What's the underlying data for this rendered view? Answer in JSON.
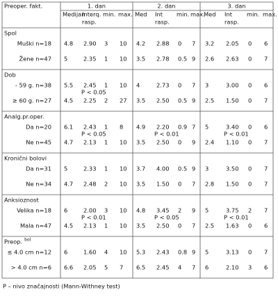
{
  "table": {
    "header": [
      "Preoper. fakt.",
      "1. dan",
      "2. dan",
      "3. dan"
    ],
    "subheader": [
      [
        [
          "Medijan"
        ],
        [
          "Interq.",
          "rasp."
        ],
        [
          "min."
        ],
        [
          "max."
        ]
      ],
      [
        [
          "Med"
        ],
        [
          "Int",
          "rasp."
        ],
        [
          "min."
        ],
        [
          "max."
        ]
      ],
      [
        [
          "Med"
        ],
        [
          "Int",
          "rasp."
        ],
        [
          "min."
        ],
        [
          "max."
        ]
      ]
    ],
    "groups": [
      {
        "label": "Spol",
        "rows": [
          {
            "label": "Muški n=18",
            "days": [
              [
                "4.8",
                "2.90",
                "3",
                "10"
              ],
              [
                "4.2",
                "2.88",
                "0",
                "7"
              ],
              [
                "3.2",
                "2.05",
                "0",
                "6"
              ]
            ]
          },
          {
            "label": "Žene n=47",
            "days": [
              [
                "5",
                "2.35",
                "1",
                "10"
              ],
              [
                "3.5",
                "2.78",
                "0.5",
                "9"
              ],
              [
                "2.6",
                "2.63",
                "0",
                "7"
              ]
            ]
          }
        ],
        "p": [
          null,
          null,
          null
        ]
      },
      {
        "label": "Dob",
        "rows": [
          {
            "label": "- 59 g. n=38",
            "days": [
              [
                "5.5",
                "2.45",
                "1",
                "10"
              ],
              [
                "4",
                "2.73",
                "0",
                "7"
              ],
              [
                "3",
                "3.00",
                "0",
                "6"
              ]
            ]
          },
          {
            "label": "≥ 60 g. n=27",
            "days": [
              [
                "4.5",
                "2.25",
                "2",
                "27"
              ],
              [
                "3.5",
                "2.50",
                "0.5",
                "9"
              ],
              [
                "2.5",
                "1.50",
                "0",
                "7"
              ]
            ]
          }
        ],
        "p": [
          "P < 0.05",
          null,
          null
        ]
      },
      {
        "label": "Analg.pr.oper.",
        "rows": [
          {
            "label": "Da n=20",
            "days": [
              [
                "6.1",
                "2.43",
                "1",
                "8"
              ],
              [
                "4.9",
                "2.20",
                "0.9",
                "7"
              ],
              [
                "5",
                "3.40",
                "0",
                "6"
              ]
            ]
          },
          {
            "label": "Ne n=45",
            "days": [
              [
                "4.7",
                "2.13",
                "1",
                "10"
              ],
              [
                "3.5",
                "2.50",
                "0",
                "9"
              ],
              [
                "2.4",
                "1.10",
                "0",
                "7"
              ]
            ]
          }
        ],
        "p": [
          "P < 0.05",
          "P < 0.01",
          "P < 0.01"
        ]
      },
      {
        "label": "Kronični bolovi",
        "rows": [
          {
            "label": "Da n=31",
            "days": [
              [
                "5",
                "2.33",
                "1",
                "10"
              ],
              [
                "3.7",
                "4.00",
                "0.5",
                "9"
              ],
              [
                "3",
                "3.50",
                "0",
                "7"
              ]
            ]
          },
          {
            "label": "Ne n=34",
            "days": [
              [
                "4.7",
                "2.48",
                "2",
                "10"
              ],
              [
                "3.5",
                "1.50",
                "0",
                "7"
              ],
              [
                "2.8",
                "1.50",
                "0",
                "7"
              ]
            ]
          }
        ],
        "p": [
          null,
          null,
          null
        ]
      },
      {
        "label": "Anksioznost",
        "rows": [
          {
            "label": "Velika n=18",
            "days": [
              [
                "6",
                "2.00",
                "3",
                "10"
              ],
              [
                "4.8",
                "3.45",
                "2",
                "9"
              ],
              [
                "5",
                "3.75",
                "2",
                "7"
              ]
            ]
          },
          {
            "label": "Mala n=47",
            "days": [
              [
                "4.5",
                "2.13",
                "1",
                "10"
              ],
              [
                "3.5",
                "2.50",
                "0",
                "7"
              ],
              [
                "2.5",
                "1.63",
                "0",
                "6"
              ]
            ]
          }
        ],
        "p": [
          "P < 0.01",
          "P < 0.05",
          "P < 0.01"
        ]
      },
      {
        "label": "Preop.",
        "label_sup": "bol",
        "rows": [
          {
            "label": "≤ 4.0 cm n=12",
            "days": [
              [
                "6",
                "1.60",
                "4",
                "10"
              ],
              [
                "5.3",
                "2.43",
                "0.8",
                "9"
              ],
              [
                "5",
                "3.13",
                "0",
                "7"
              ]
            ]
          },
          {
            "label": "> 4.0 cm n=6",
            "days": [
              [
                "6.6",
                "2.05",
                "5",
                "7"
              ],
              [
                "6.5",
                "2.45",
                "4",
                "7"
              ],
              [
                "6",
                "2.10",
                "3",
                "6"
              ]
            ]
          }
        ],
        "p": [
          null,
          null,
          null
        ]
      }
    ],
    "footnote": "P – nivo značajnosti (Mann-Withney test)"
  }
}
